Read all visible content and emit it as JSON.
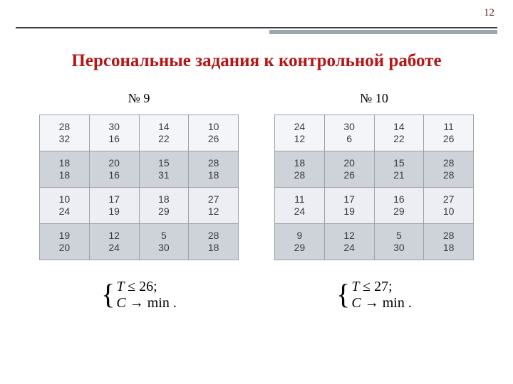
{
  "page_number": "12",
  "title": "Персональные задания к контрольной работе",
  "colors": {
    "title": "#b51515",
    "rule": "#3c3c46",
    "accent": "#9aa5af",
    "cell_border": "#9da3aa",
    "row_light": "#f3f5f8",
    "row_dark": "#ced2d9",
    "row_mid": "#eceef3"
  },
  "variants": [
    {
      "label": "№ 9",
      "matrix": [
        [
          [
            28,
            32
          ],
          [
            30,
            16
          ],
          [
            14,
            22
          ],
          [
            10,
            26
          ]
        ],
        [
          [
            18,
            18
          ],
          [
            20,
            16
          ],
          [
            15,
            31
          ],
          [
            28,
            18
          ]
        ],
        [
          [
            10,
            24
          ],
          [
            17,
            19
          ],
          [
            18,
            29
          ],
          [
            27,
            12
          ]
        ],
        [
          [
            19,
            20
          ],
          [
            12,
            24
          ],
          [
            5,
            30
          ],
          [
            28,
            18
          ]
        ]
      ],
      "constraint_T": "T ≤ 26;",
      "objective": "C → min ."
    },
    {
      "label": "№ 10",
      "matrix": [
        [
          [
            24,
            12
          ],
          [
            30,
            6
          ],
          [
            14,
            22
          ],
          [
            11,
            26
          ]
        ],
        [
          [
            18,
            28
          ],
          [
            20,
            26
          ],
          [
            15,
            21
          ],
          [
            28,
            28
          ]
        ],
        [
          [
            11,
            24
          ],
          [
            17,
            19
          ],
          [
            16,
            29
          ],
          [
            27,
            10
          ]
        ],
        [
          [
            9,
            29
          ],
          [
            12,
            24
          ],
          [
            5,
            30
          ],
          [
            28,
            18
          ]
        ]
      ],
      "constraint_T": "T ≤ 27;",
      "objective": "C → min ."
    }
  ]
}
